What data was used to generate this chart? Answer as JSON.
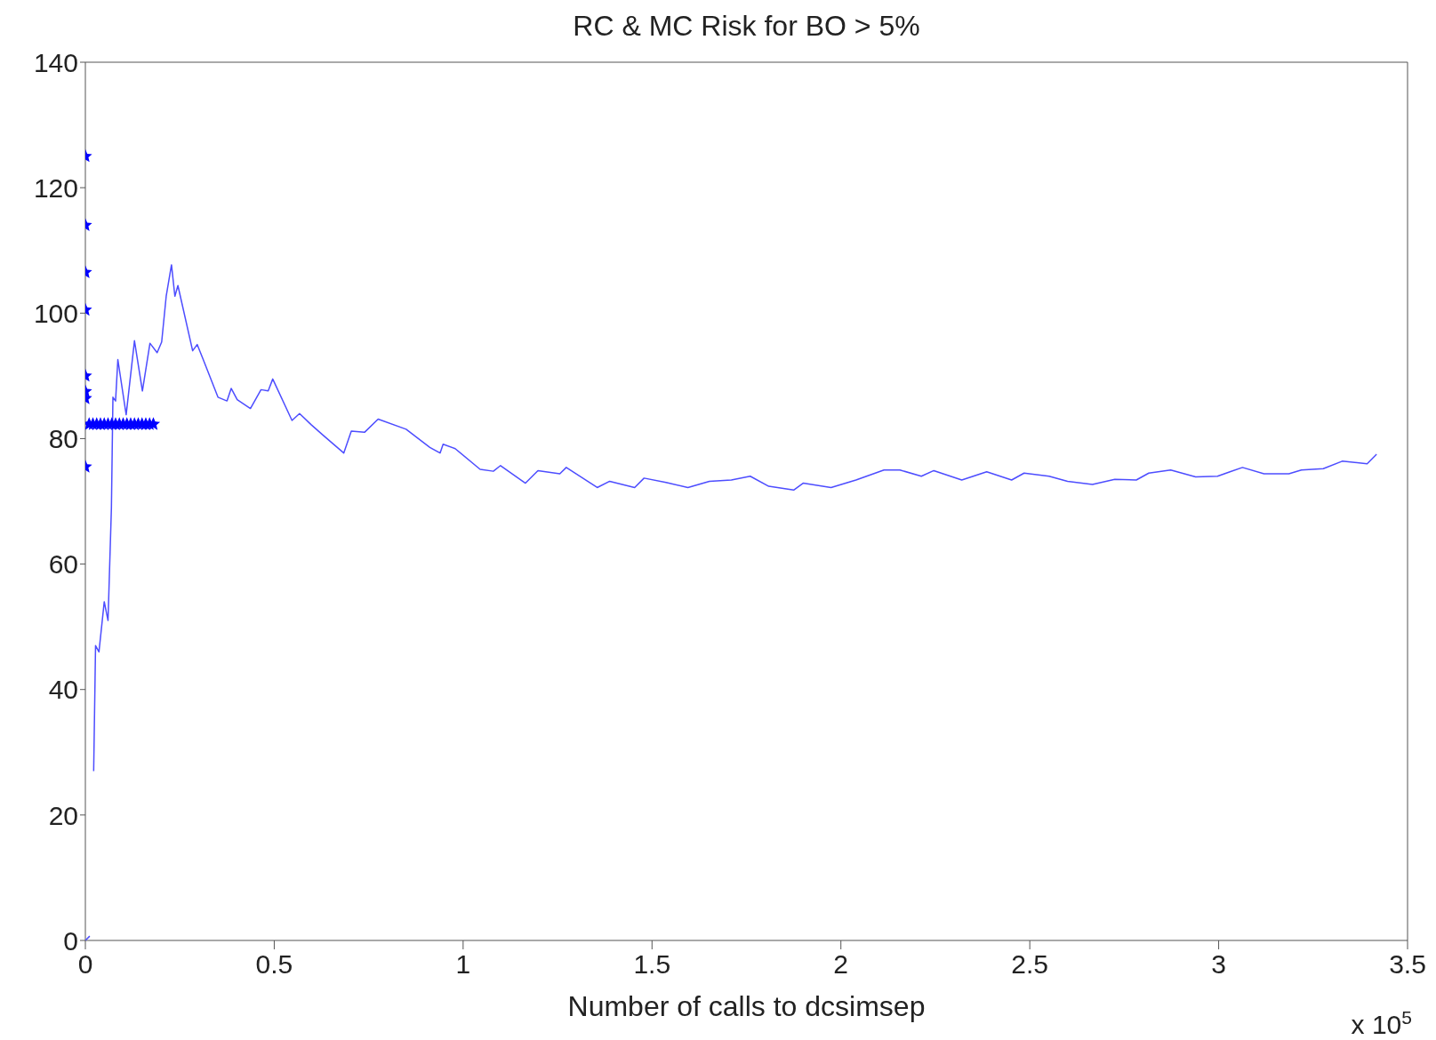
{
  "chart_data": {
    "type": "line",
    "title": "RC & MC Risk for BO > 5%",
    "xlabel": "Number of calls to dcsimsep",
    "annotations": [
      "x 10$^{5}$"
    ],
    "xlim": [
      0,
      3.5
    ],
    "xticks": [
      0,
      0.5,
      1,
      1.5,
      2,
      2.5,
      3,
      3.5
    ],
    "ylim": [
      0,
      140
    ],
    "yticks": [
      0,
      20,
      40,
      60,
      80,
      100,
      120,
      140
    ],
    "grid": false,
    "series": [
      {
        "color": "#4d4dff",
        "marker": "none",
        "x": [
          0.022,
          0.027,
          0.036,
          0.05,
          0.06,
          0.069,
          0.073,
          0.08,
          0.086,
          0.108,
          0.13,
          0.151,
          0.171,
          0.19,
          0.202,
          0.214,
          0.228,
          0.237,
          0.245,
          0.284,
          0.296,
          0.312,
          0.351,
          0.375,
          0.386,
          0.402,
          0.437,
          0.465,
          0.484,
          0.496,
          0.547,
          0.567,
          0.598,
          0.63,
          0.684,
          0.704,
          0.739,
          0.775,
          0.849,
          0.912,
          0.939,
          0.947,
          0.979,
          1.045,
          1.08,
          1.099,
          1.165,
          1.198,
          1.256,
          1.273,
          1.355,
          1.388,
          1.454,
          1.479,
          1.537,
          1.595,
          1.652,
          1.71,
          1.76,
          1.809,
          1.875,
          1.9,
          1.974,
          2.04,
          2.114,
          2.156,
          2.213,
          2.246,
          2.32,
          2.386,
          2.452,
          2.485,
          2.551,
          2.6,
          2.666,
          2.725,
          2.782,
          2.815,
          2.873,
          2.939,
          2.997,
          3.03,
          3.063,
          3.12,
          3.186,
          3.219,
          3.277,
          3.327,
          3.393,
          3.418
        ],
        "values": [
          27,
          47,
          46,
          54,
          51,
          69,
          86.6,
          86,
          92.6,
          83.8,
          95.6,
          87.6,
          95.2,
          93.7,
          95.4,
          102.7,
          107.7,
          102.7,
          104.4,
          94,
          95,
          92.6,
          86.6,
          86,
          88,
          86.2,
          84.8,
          87.8,
          87.6,
          89.5,
          82.9,
          84,
          82.2,
          80.5,
          77.7,
          81.2,
          81,
          83.1,
          81.5,
          78.6,
          77.7,
          79.1,
          78.4,
          75.1,
          74.8,
          75.7,
          72.9,
          74.9,
          74.4,
          75.4,
          72.2,
          73.2,
          72.2,
          73.7,
          73,
          72.2,
          73.2,
          73.4,
          74,
          72.4,
          71.8,
          72.9,
          72.2,
          73.4,
          75,
          75,
          74,
          74.9,
          73.4,
          74.7,
          73.4,
          74.5,
          74,
          73.2,
          72.7,
          73.5,
          73.4,
          74.5,
          75,
          73.9,
          74,
          74.7,
          75.4,
          74.4,
          74.4,
          75,
          75.2,
          76.4,
          76,
          77.5
        ]
      },
      {
        "type": "scatter",
        "color": "#0000ff",
        "marker": "star",
        "x": [
          0,
          0,
          0,
          0,
          0,
          0,
          0,
          0,
          0.01,
          0.02,
          0.03,
          0.04,
          0.05,
          0.06,
          0.07,
          0.08,
          0.09,
          0.1,
          0.11,
          0.12,
          0.13,
          0.14,
          0.15,
          0.16,
          0.17,
          0.18
        ],
        "values": [
          125,
          114,
          106.5,
          100.5,
          90,
          87.5,
          86.4,
          75.5,
          82.3,
          82.3,
          82.3,
          82.3,
          82.3,
          82.3,
          82.3,
          82.3,
          82.3,
          82.3,
          82.3,
          82.3,
          82.3,
          82.3,
          82.3,
          82.3,
          82.3,
          82.3
        ]
      },
      {
        "type": "scatter",
        "color": "#4d4dff",
        "marker": "cross",
        "x": [
          0
        ],
        "values": [
          0
        ]
      }
    ]
  }
}
